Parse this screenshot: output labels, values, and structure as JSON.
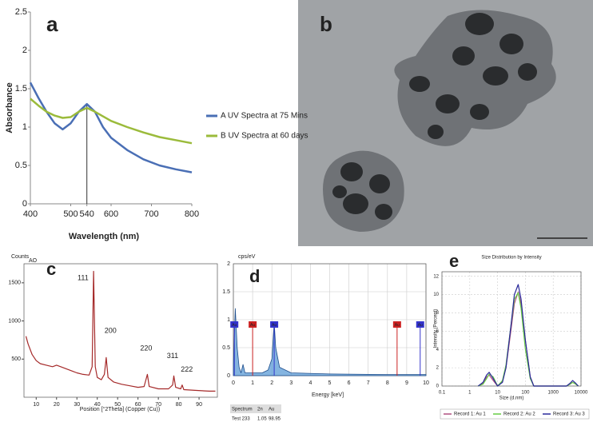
{
  "chart_data": [
    {
      "type": "line",
      "panel_label": "a",
      "xlabel": "Wavelength (nm)",
      "ylabel": "Absorbance",
      "x": [
        400,
        420,
        440,
        460,
        480,
        500,
        520,
        540,
        560,
        580,
        600,
        640,
        680,
        720,
        760,
        800
      ],
      "series": [
        {
          "name": "A UV Spectra at 75 Mins",
          "color": "#4a6fb5",
          "values": [
            1.58,
            1.38,
            1.2,
            1.05,
            0.97,
            1.05,
            1.2,
            1.3,
            1.2,
            1.0,
            0.86,
            0.7,
            0.58,
            0.5,
            0.45,
            0.41
          ]
        },
        {
          "name": "B UV Spectra at 60 days",
          "color": "#9bbb3b",
          "values": [
            1.37,
            1.28,
            1.2,
            1.15,
            1.12,
            1.13,
            1.2,
            1.25,
            1.2,
            1.14,
            1.08,
            1.0,
            0.93,
            0.87,
            0.83,
            0.79
          ]
        }
      ],
      "xlim": [
        400,
        800
      ],
      "xticks": [
        400,
        500,
        540,
        600,
        700,
        800
      ],
      "ylim": [
        0,
        2.5
      ],
      "yticks": [
        0,
        0.5,
        1,
        1.5,
        2,
        2.5
      ],
      "vline": 540,
      "grid": false,
      "legend": "right"
    },
    {
      "type": "line",
      "panel_label": "c",
      "ylabel": "Counts",
      "xlabel": "Position [°2Theta] (Copper (Cu))",
      "sample_label": "AO",
      "x": [
        5,
        6,
        8,
        10,
        12,
        15,
        18,
        20,
        22,
        25,
        28,
        30,
        33,
        36,
        37.5,
        38.2,
        39,
        40,
        42,
        43.5,
        44.4,
        45.3,
        48,
        52,
        56,
        60,
        63,
        64.6,
        65.5,
        70,
        75,
        77,
        77.6,
        78.5,
        81,
        81.7,
        82.5,
        88,
        95,
        98
      ],
      "series": [
        {
          "name": null,
          "color": "#a52a2a",
          "values": [
            800,
            700,
            560,
            480,
            440,
            420,
            400,
            420,
            400,
            370,
            340,
            320,
            300,
            290,
            400,
            1650,
            400,
            260,
            230,
            300,
            520,
            260,
            200,
            170,
            150,
            130,
            140,
            300,
            140,
            110,
            110,
            160,
            280,
            130,
            110,
            160,
            100,
            90,
            80,
            80
          ]
        }
      ],
      "xlim": [
        4,
        99
      ],
      "xticks": [
        10,
        20,
        30,
        40,
        50,
        60,
        70,
        80,
        90
      ],
      "ylim": [
        0,
        1750
      ],
      "yticks": [
        500,
        1000,
        1500
      ],
      "grid": false,
      "annotations": [
        {
          "text": "111",
          "x": 33,
          "y": 1560
        },
        {
          "text": "200",
          "x": 46.5,
          "y": 870
        },
        {
          "text": "220",
          "x": 64,
          "y": 640
        },
        {
          "text": "311",
          "x": 77,
          "y": 540
        },
        {
          "text": "222",
          "x": 84,
          "y": 360
        }
      ]
    },
    {
      "type": "area",
      "panel_label": "d",
      "ylabel": "cps/eV",
      "xlabel": "Energy [keV]",
      "x": [
        0,
        0.1,
        0.2,
        0.3,
        0.4,
        0.5,
        0.6,
        1.0,
        1.5,
        1.8,
        2.0,
        2.12,
        2.2,
        2.4,
        3,
        5,
        8,
        9.7,
        10
      ],
      "series": [
        {
          "name": null,
          "color": "#5b9bd5",
          "values": [
            0.2,
            1.2,
            0.5,
            0.15,
            0.05,
            0.2,
            0.05,
            0.05,
            0.05,
            0.1,
            0.3,
            0.95,
            0.5,
            0.15,
            0.05,
            0.03,
            0.02,
            0.02,
            0.02
          ]
        }
      ],
      "xlim": [
        0,
        10
      ],
      "xticks": [
        0,
        1,
        2,
        3,
        4,
        5,
        6,
        7,
        8,
        9,
        10
      ],
      "ylim": [
        0,
        2
      ],
      "yticks": [
        0,
        0.5,
        1,
        1.5,
        2
      ],
      "grid": true,
      "markers": [
        {
          "label": "Au",
          "x": 0.05,
          "color": "#3333cc"
        },
        {
          "label": "Au",
          "x": 1.0,
          "color": "#cc2222"
        },
        {
          "label": "Au",
          "x": 2.12,
          "color": "#3333cc"
        },
        {
          "label": "Au",
          "x": 8.5,
          "color": "#cc2222"
        },
        {
          "label": "Au",
          "x": 9.7,
          "color": "#3333cc"
        }
      ],
      "table": {
        "rows": [
          [
            "Spectrum",
            "2n",
            "Au"
          ],
          [
            "Test 233",
            "1.05",
            "98.95"
          ]
        ]
      }
    },
    {
      "type": "line",
      "panel_label": "e",
      "title": "Size Distribution by Intensity",
      "ylabel": "Intensity (Percent)",
      "xlabel": "Size (d.nm)",
      "x": [
        2,
        3,
        4,
        5,
        7,
        10,
        15,
        20,
        30,
        40,
        55,
        70,
        100,
        150,
        200,
        3000,
        4000,
        5000,
        6500,
        8000
      ],
      "series": [
        {
          "name": "Record 1: Au 1",
          "color": "#b05080",
          "values": [
            0,
            0.3,
            1.0,
            1.2,
            0.6,
            0,
            0.5,
            2,
            6,
            9,
            10.3,
            9,
            5,
            1,
            0,
            0,
            0.2,
            0.4,
            0.2,
            0
          ]
        },
        {
          "name": "Record 2: Au 2",
          "color": "#66cc44",
          "values": [
            0,
            0.2,
            0.8,
            1.3,
            1.0,
            0,
            0.6,
            2.3,
            6.5,
            9.5,
            10.2,
            8.5,
            4,
            0.8,
            0,
            0,
            0.2,
            0.4,
            0.2,
            0
          ]
        },
        {
          "name": "Record 3: Au 3",
          "color": "#2a2a9a",
          "values": [
            0,
            0.4,
            1.2,
            1.5,
            0.8,
            0,
            0.4,
            2,
            6.5,
            10,
            11.1,
            9.5,
            5,
            1,
            0,
            0,
            0.3,
            0.6,
            0.3,
            0
          ]
        }
      ],
      "xlog": true,
      "xlim": [
        0.1,
        10000
      ],
      "xticks": [
        0.1,
        1,
        10,
        100,
        1000,
        10000
      ],
      "ylim": [
        0,
        12.5
      ],
      "yticks": [
        0,
        2,
        4,
        6,
        8,
        10,
        12
      ],
      "grid": true,
      "legend": "bottom"
    }
  ],
  "image_panel": {
    "label": "b"
  }
}
